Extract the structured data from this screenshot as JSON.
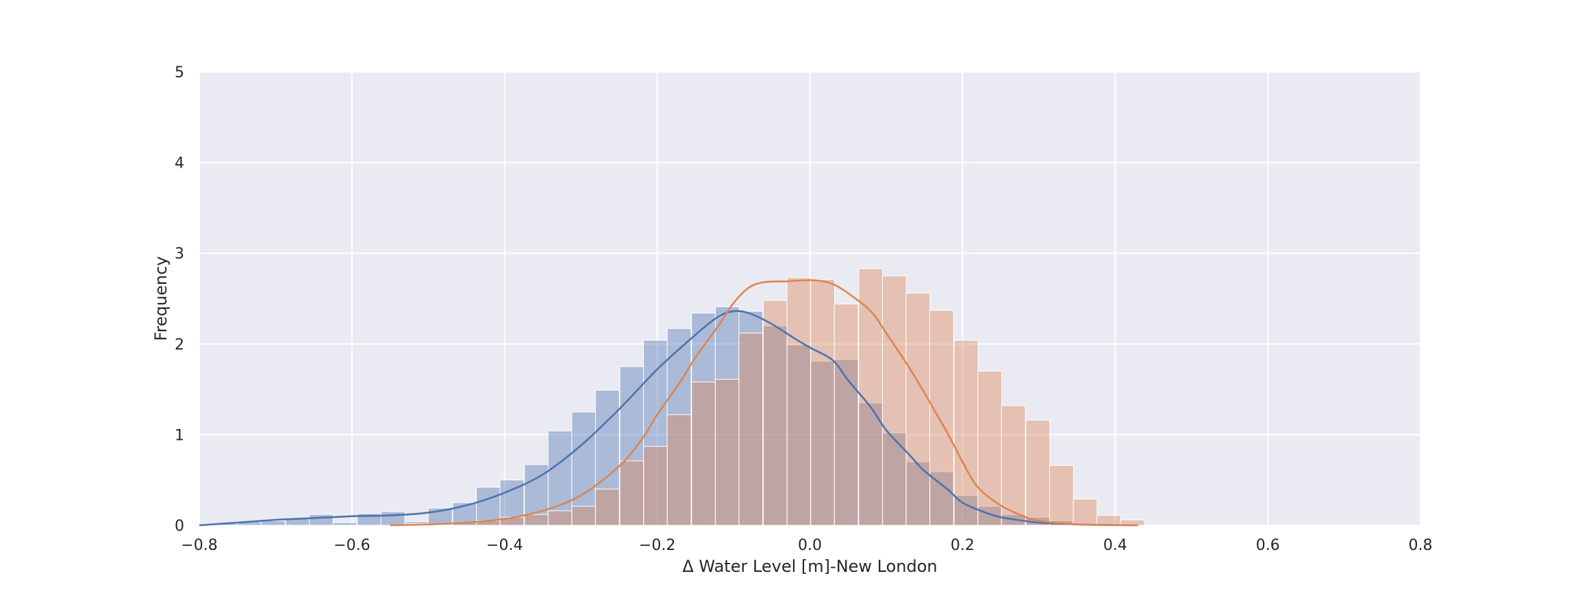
{
  "chart_data": {
    "type": "histogram",
    "title": "",
    "xlabel": "Δ Water Level [m]-New London",
    "ylabel": "Frequency",
    "xlim": [
      -0.8,
      0.8
    ],
    "ylim": [
      0,
      5
    ],
    "x_ticks": [
      -0.8,
      -0.6,
      -0.4,
      -0.2,
      0.0,
      0.2,
      0.4,
      0.6,
      0.8
    ],
    "x_tick_labels": [
      "−0.8",
      "−0.6",
      "−0.4",
      "−0.2",
      "0.0",
      "0.2",
      "0.4",
      "0.6",
      "0.8"
    ],
    "y_ticks": [
      0,
      1,
      2,
      3,
      4,
      5
    ],
    "y_tick_labels": [
      "0",
      "1",
      "2",
      "3",
      "4",
      "5"
    ],
    "grid": true,
    "background": "#EAEAF2",
    "series": [
      {
        "color": "#4C72B0",
        "bin_width": 0.0313,
        "bars": [
          {
            "x0": -0.781,
            "value": 0.02
          },
          {
            "x0": -0.75,
            "value": 0.04
          },
          {
            "x0": -0.719,
            "value": 0.05
          },
          {
            "x0": -0.687,
            "value": 0.07
          },
          {
            "x0": -0.656,
            "value": 0.12
          },
          {
            "x0": -0.625,
            "value": 0.03
          },
          {
            "x0": -0.593,
            "value": 0.13
          },
          {
            "x0": -0.562,
            "value": 0.15
          },
          {
            "x0": -0.531,
            "value": 0.04
          },
          {
            "x0": -0.5,
            "value": 0.19
          },
          {
            "x0": -0.468,
            "value": 0.25
          },
          {
            "x0": -0.437,
            "value": 0.42
          },
          {
            "x0": -0.406,
            "value": 0.5
          },
          {
            "x0": -0.374,
            "value": 0.67
          },
          {
            "x0": -0.343,
            "value": 1.04
          },
          {
            "x0": -0.312,
            "value": 1.25
          },
          {
            "x0": -0.281,
            "value": 1.49
          },
          {
            "x0": -0.249,
            "value": 1.75
          },
          {
            "x0": -0.218,
            "value": 2.04
          },
          {
            "x0": -0.187,
            "value": 2.17
          },
          {
            "x0": -0.155,
            "value": 2.34
          },
          {
            "x0": -0.124,
            "value": 2.41
          },
          {
            "x0": -0.093,
            "value": 2.36
          },
          {
            "x0": -0.061,
            "value": 2.2
          },
          {
            "x0": -0.03,
            "value": 1.99
          },
          {
            "x0": 0.001,
            "value": 1.81
          },
          {
            "x0": 0.032,
            "value": 1.83
          },
          {
            "x0": 0.064,
            "value": 1.35
          },
          {
            "x0": 0.095,
            "value": 1.02
          },
          {
            "x0": 0.126,
            "value": 0.7
          },
          {
            "x0": 0.157,
            "value": 0.59
          },
          {
            "x0": 0.189,
            "value": 0.33
          },
          {
            "x0": 0.22,
            "value": 0.21
          },
          {
            "x0": 0.251,
            "value": 0.12
          },
          {
            "x0": 0.283,
            "value": 0.09
          },
          {
            "x0": 0.314,
            "value": 0.05
          },
          {
            "x0": 0.345,
            "value": 0.02
          },
          {
            "x0": 0.376,
            "value": 0.01
          }
        ],
        "kde": [
          [
            -0.8,
            0.0
          ],
          [
            -0.75,
            0.03
          ],
          [
            -0.7,
            0.06
          ],
          [
            -0.65,
            0.08
          ],
          [
            -0.6,
            0.1
          ],
          [
            -0.55,
            0.11
          ],
          [
            -0.5,
            0.14
          ],
          [
            -0.45,
            0.22
          ],
          [
            -0.4,
            0.36
          ],
          [
            -0.35,
            0.56
          ],
          [
            -0.3,
            0.88
          ],
          [
            -0.25,
            1.28
          ],
          [
            -0.2,
            1.72
          ],
          [
            -0.15,
            2.1
          ],
          [
            -0.12,
            2.3
          ],
          [
            -0.1,
            2.36
          ],
          [
            -0.08,
            2.34
          ],
          [
            -0.05,
            2.22
          ],
          [
            -0.02,
            2.06
          ],
          [
            0.0,
            1.96
          ],
          [
            0.03,
            1.82
          ],
          [
            0.05,
            1.6
          ],
          [
            0.08,
            1.3
          ],
          [
            0.1,
            1.05
          ],
          [
            0.13,
            0.78
          ],
          [
            0.15,
            0.6
          ],
          [
            0.18,
            0.4
          ],
          [
            0.2,
            0.25
          ],
          [
            0.23,
            0.14
          ],
          [
            0.25,
            0.09
          ],
          [
            0.28,
            0.05
          ],
          [
            0.3,
            0.03
          ],
          [
            0.35,
            0.01
          ],
          [
            0.425,
            0.0
          ]
        ]
      },
      {
        "color": "#DD8452",
        "bin_width": 0.0313,
        "bars": [
          {
            "x0": -0.531,
            "value": 0.02
          },
          {
            "x0": -0.5,
            "value": 0.01
          },
          {
            "x0": -0.468,
            "value": 0.03
          },
          {
            "x0": -0.437,
            "value": 0.05
          },
          {
            "x0": -0.406,
            "value": 0.09
          },
          {
            "x0": -0.374,
            "value": 0.12
          },
          {
            "x0": -0.343,
            "value": 0.16
          },
          {
            "x0": -0.312,
            "value": 0.21
          },
          {
            "x0": -0.281,
            "value": 0.4
          },
          {
            "x0": -0.249,
            "value": 0.71
          },
          {
            "x0": -0.218,
            "value": 0.87
          },
          {
            "x0": -0.187,
            "value": 1.22
          },
          {
            "x0": -0.155,
            "value": 1.58
          },
          {
            "x0": -0.124,
            "value": 1.61
          },
          {
            "x0": -0.093,
            "value": 2.12
          },
          {
            "x0": -0.061,
            "value": 2.48
          },
          {
            "x0": -0.03,
            "value": 2.73
          },
          {
            "x0": 0.001,
            "value": 2.71
          },
          {
            "x0": 0.032,
            "value": 2.44
          },
          {
            "x0": 0.064,
            "value": 2.83
          },
          {
            "x0": 0.095,
            "value": 2.75
          },
          {
            "x0": 0.126,
            "value": 2.56
          },
          {
            "x0": 0.157,
            "value": 2.37
          },
          {
            "x0": 0.189,
            "value": 2.04
          },
          {
            "x0": 0.22,
            "value": 1.7
          },
          {
            "x0": 0.251,
            "value": 1.32
          },
          {
            "x0": 0.283,
            "value": 1.16
          },
          {
            "x0": 0.314,
            "value": 0.66
          },
          {
            "x0": 0.345,
            "value": 0.29
          },
          {
            "x0": 0.376,
            "value": 0.11
          },
          {
            "x0": 0.407,
            "value": 0.06
          }
        ],
        "kde": [
          [
            -0.55,
            0.0
          ],
          [
            -0.5,
            0.01
          ],
          [
            -0.45,
            0.03
          ],
          [
            -0.4,
            0.07
          ],
          [
            -0.35,
            0.16
          ],
          [
            -0.3,
            0.33
          ],
          [
            -0.25,
            0.65
          ],
          [
            -0.22,
            0.95
          ],
          [
            -0.2,
            1.22
          ],
          [
            -0.17,
            1.58
          ],
          [
            -0.15,
            1.85
          ],
          [
            -0.12,
            2.2
          ],
          [
            -0.1,
            2.45
          ],
          [
            -0.08,
            2.62
          ],
          [
            -0.06,
            2.68
          ],
          [
            -0.03,
            2.69
          ],
          [
            -0.01,
            2.7
          ],
          [
            0.01,
            2.7
          ],
          [
            0.03,
            2.66
          ],
          [
            0.05,
            2.56
          ],
          [
            0.08,
            2.36
          ],
          [
            0.1,
            2.12
          ],
          [
            0.13,
            1.74
          ],
          [
            0.15,
            1.46
          ],
          [
            0.18,
            1.02
          ],
          [
            0.2,
            0.7
          ],
          [
            0.22,
            0.42
          ],
          [
            0.25,
            0.22
          ],
          [
            0.28,
            0.1
          ],
          [
            0.3,
            0.05
          ],
          [
            0.35,
            0.01
          ],
          [
            0.43,
            0.0
          ]
        ]
      }
    ]
  }
}
